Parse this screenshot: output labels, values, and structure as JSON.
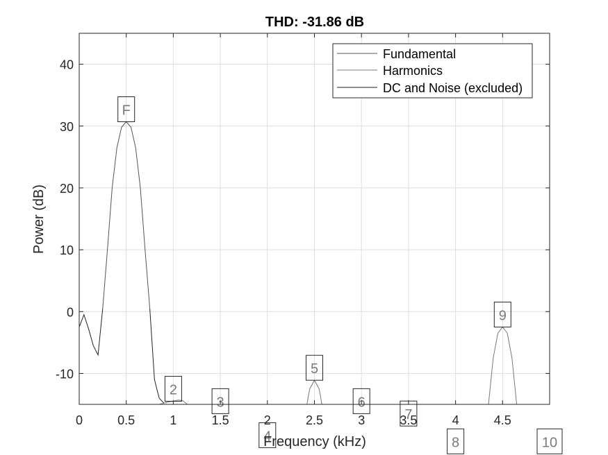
{
  "chart_data": {
    "type": "line",
    "title": "THD: -31.86 dB",
    "xlabel": "Frequency (kHz)",
    "ylabel": "Power (dB)",
    "xlim": [
      0,
      5
    ],
    "ylim": [
      -15,
      45
    ],
    "xticks": [
      0,
      0.5,
      1,
      1.5,
      2,
      2.5,
      3,
      3.5,
      4,
      4.5
    ],
    "xtick_labels": [
      "0",
      "0.5",
      "1",
      "1.5",
      "2",
      "2.5",
      "3",
      "3.5",
      "4",
      "4.5"
    ],
    "yticks": [
      -10,
      0,
      10,
      20,
      30,
      40
    ],
    "ytick_labels": [
      "-10",
      "0",
      "10",
      "20",
      "30",
      "40"
    ],
    "grid": true,
    "legend_position": "top-right",
    "series": [
      {
        "name": "Fundamental",
        "color": "#555555",
        "x": [
          0.25,
          0.3,
          0.35,
          0.4,
          0.45,
          0.5,
          0.55,
          0.6,
          0.65,
          0.7,
          0.75
        ],
        "y": [
          0.5,
          10,
          20,
          26.5,
          29.8,
          30.7,
          29.8,
          26.5,
          20,
          10,
          0.5
        ]
      },
      {
        "name": "Harmonics",
        "color": "#777777",
        "segments": [
          {
            "x": [
              0.85,
              0.9,
              0.95,
              1.0,
              1.05,
              1.1,
              1.15
            ],
            "y": [
              -15,
              -14.8,
              -14.6,
              -14.5,
              -14.3,
              -14.4,
              -15
            ]
          },
          {
            "x": [
              2.42,
              2.45,
              2.5,
              2.55,
              2.58
            ],
            "y": [
              -15,
              -12.5,
              -11.1,
              -12.5,
              -15
            ]
          },
          {
            "x": [
              4.35,
              4.4,
              4.45,
              4.5,
              4.55,
              4.6,
              4.65
            ],
            "y": [
              -15,
              -7.5,
              -3.5,
              -2.5,
              -3.5,
              -7.5,
              -15
            ]
          }
        ]
      },
      {
        "name": "DC and Noise (excluded)",
        "color": "#222222",
        "segments": [
          {
            "x": [
              0,
              0.05,
              0.1,
              0.15,
              0.2,
              0.25
            ],
            "y": [
              -2.5,
              -0.5,
              -2.8,
              -5.5,
              -7,
              0.5
            ]
          },
          {
            "x": [
              0.75,
              0.8,
              0.85
            ],
            "y": [
              0.5,
              -11,
              -14
            ]
          },
          {
            "x": [
              0.85,
              0.9
            ],
            "y": [
              -14,
              -14.8
            ]
          }
        ]
      }
    ],
    "annotations": [
      {
        "label": "F",
        "x": 0.5,
        "y": 30.7
      },
      {
        "label": "2",
        "x": 1.0,
        "y": -14.5
      },
      {
        "label": "3",
        "x": 1.5,
        "y": -16.5
      },
      {
        "label": "4",
        "x": 2.0,
        "y": -22
      },
      {
        "label": "5",
        "x": 2.5,
        "y": -11.1
      },
      {
        "label": "6",
        "x": 3.0,
        "y": -16.5
      },
      {
        "label": "7",
        "x": 3.5,
        "y": -18.5
      },
      {
        "label": "8",
        "x": 4.0,
        "y": -23
      },
      {
        "label": "9",
        "x": 4.5,
        "y": -2.5
      },
      {
        "label": "10",
        "x": 5.0,
        "y": -23
      }
    ]
  }
}
